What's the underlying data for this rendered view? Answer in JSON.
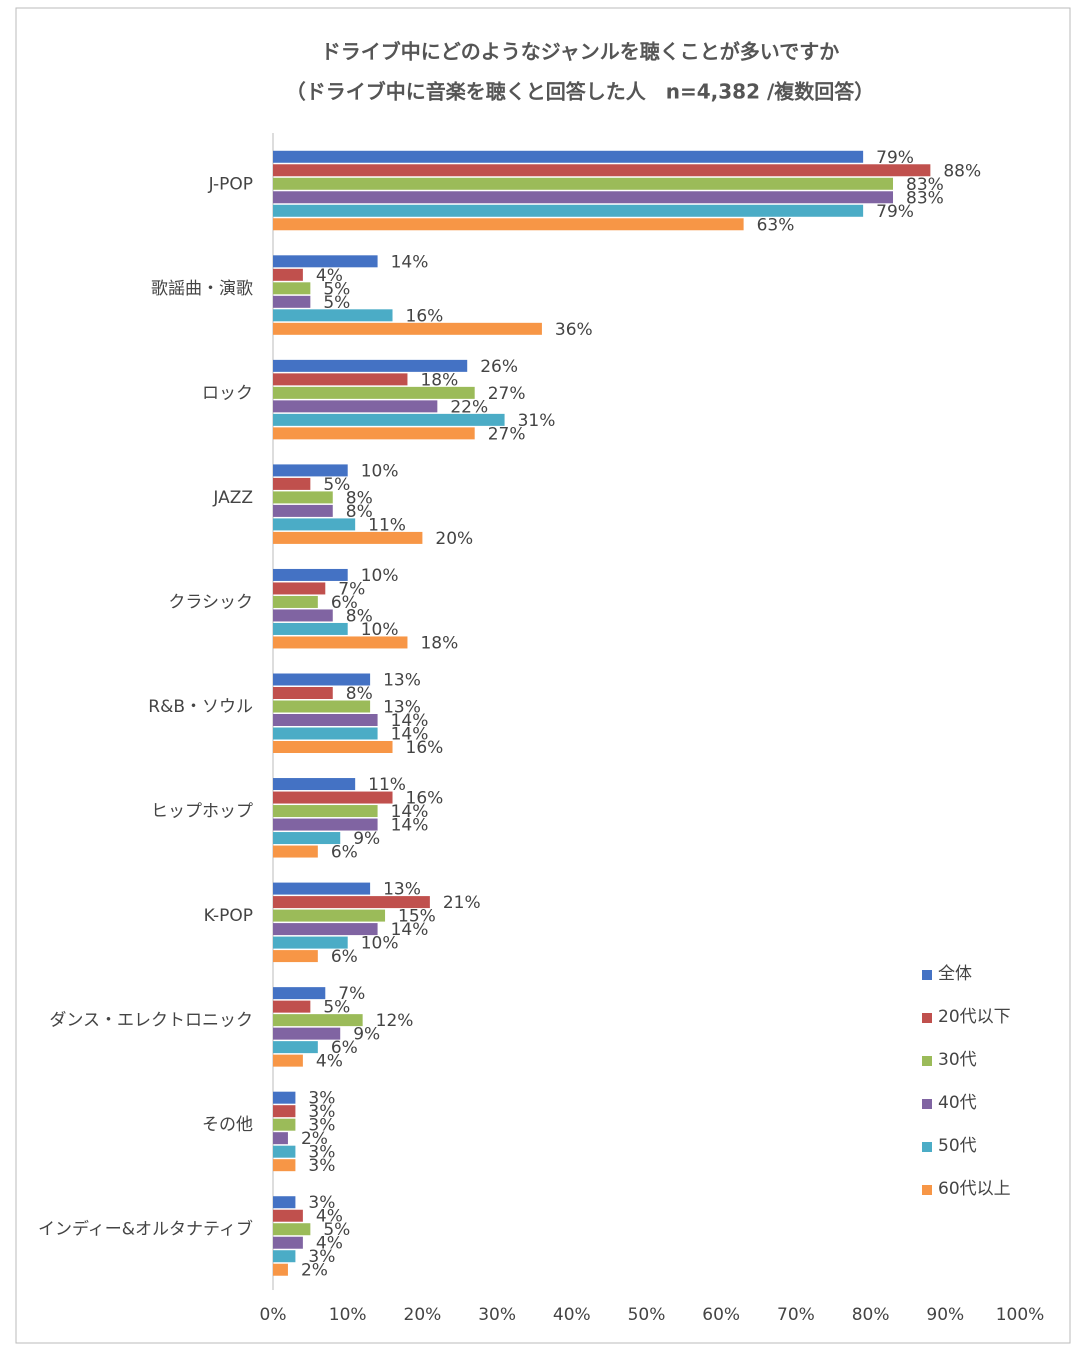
{
  "chart_data": {
    "type": "bar",
    "orientation": "horizontal",
    "title": "ドライブ中にどのようなジャンルを聴くことが多いですか",
    "subtitle": "（ドライブ中に音楽を聴くと回答した人　n=4,382 /複数回答）",
    "categories": [
      "J-POP",
      "歌謡曲・演歌",
      "ロック",
      "JAZZ",
      "クラシック",
      "R&B・ソウル",
      "ヒップホップ",
      "K-POP",
      "ダンス・エレクトロニック",
      "その他",
      "インディー&オルタナティブ"
    ],
    "series": [
      {
        "name": "全体",
        "color": "#4472c4",
        "values": [
          79,
          14,
          26,
          10,
          10,
          13,
          11,
          13,
          7,
          3,
          3
        ],
        "value_labels": [
          "79%",
          "14%",
          "26%",
          "10%",
          "10%",
          "13%",
          "11%",
          "13%",
          "7%",
          "3%",
          "3%"
        ]
      },
      {
        "name": "20代以下",
        "color": "#c0504d",
        "values": [
          88,
          4,
          18,
          5,
          7,
          8,
          16,
          21,
          5,
          3,
          4
        ],
        "value_labels": [
          "88%",
          "4%",
          "18%",
          "5%",
          "7%",
          "8%",
          "16%",
          "21%",
          "5%",
          "3%",
          "4%"
        ]
      },
      {
        "name": "30代",
        "color": "#9bbb59",
        "values": [
          83,
          5,
          27,
          8,
          6,
          13,
          14,
          15,
          12,
          3,
          5
        ],
        "value_labels": [
          "83%",
          "5%",
          "27%",
          "8%",
          "6%",
          "13%",
          "14%",
          "15%",
          "12%",
          "3%",
          "5%"
        ]
      },
      {
        "name": "40代",
        "color": "#8064a2",
        "values": [
          83,
          5,
          22,
          8,
          8,
          14,
          14,
          14,
          9,
          2,
          4
        ],
        "value_labels": [
          "83%",
          "5%",
          "22%",
          "8%",
          "8%",
          "14%",
          "14%",
          "14%",
          "9%",
          "2%",
          "4%"
        ]
      },
      {
        "name": "50代",
        "color": "#4bacc6",
        "values": [
          79,
          16,
          31,
          11,
          10,
          14,
          9,
          10,
          6,
          3,
          3
        ],
        "value_labels": [
          "79%",
          "16%",
          "31%",
          "11%",
          "10%",
          "14%",
          "9%",
          "10%",
          "6%",
          "3%",
          "3%"
        ]
      },
      {
        "name": "60代以上",
        "color": "#f79646",
        "values": [
          63,
          36,
          27,
          20,
          18,
          16,
          6,
          6,
          4,
          3,
          2
        ],
        "value_labels": [
          "63%",
          "36%",
          "27%",
          "20%",
          "18%",
          "16%",
          "6%",
          "6%",
          "4%",
          "3%",
          "2%"
        ]
      }
    ],
    "xlim": [
      0,
      100
    ],
    "xticks": [
      {
        "value": 0,
        "label": "0%"
      },
      {
        "value": 10,
        "label": "10%"
      },
      {
        "value": 20,
        "label": "20%"
      },
      {
        "value": 30,
        "label": "30%"
      },
      {
        "value": 40,
        "label": "40%"
      },
      {
        "value": 50,
        "label": "50%"
      },
      {
        "value": 60,
        "label": "60%"
      },
      {
        "value": 70,
        "label": "70%"
      },
      {
        "value": 80,
        "label": "80%"
      },
      {
        "value": 90,
        "label": "90%"
      },
      {
        "value": 100,
        "label": "100%"
      }
    ],
    "grid": false,
    "legend": "lower right"
  }
}
